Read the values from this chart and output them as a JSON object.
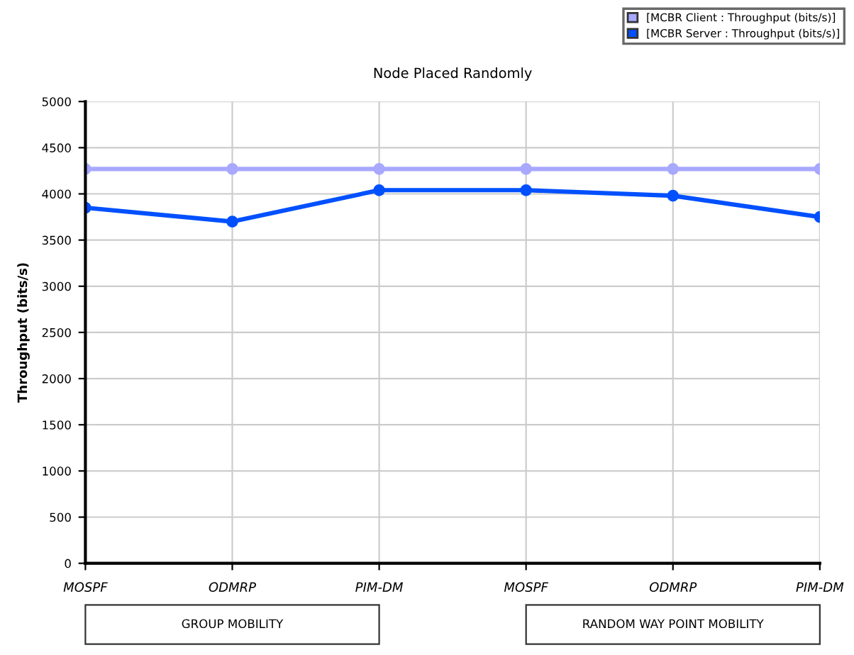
{
  "chart_data": {
    "type": "line",
    "title": "Node Placed Randomly",
    "ylabel": "Throughput (bits/s)",
    "categories": [
      "MOSPF",
      "ODMRP",
      "PIM-DM",
      "MOSPF",
      "ODMRP",
      "PIM-DM"
    ],
    "series": [
      {
        "name": "[MCBR Client : Throughput (bits/s)]",
        "color": "#a8a8ff",
        "values": [
          4270,
          4270,
          4270,
          4270,
          4270,
          4270
        ]
      },
      {
        "name": "[MCBR Server : Throughput (bits/s)]",
        "color": "#0050ff",
        "values": [
          3850,
          3700,
          4040,
          4040,
          3980,
          3750
        ]
      }
    ],
    "ylim": [
      0,
      5000
    ],
    "yticks": [
      0,
      500,
      1000,
      1500,
      2000,
      2500,
      3000,
      3500,
      4000,
      4500,
      5000
    ],
    "annotations": [
      "GROUP MOBILITY",
      "RANDOM WAY POINT MOBILITY"
    ],
    "grid": true,
    "legend": "top right",
    "marker": "circle",
    "line_style": "solid"
  }
}
